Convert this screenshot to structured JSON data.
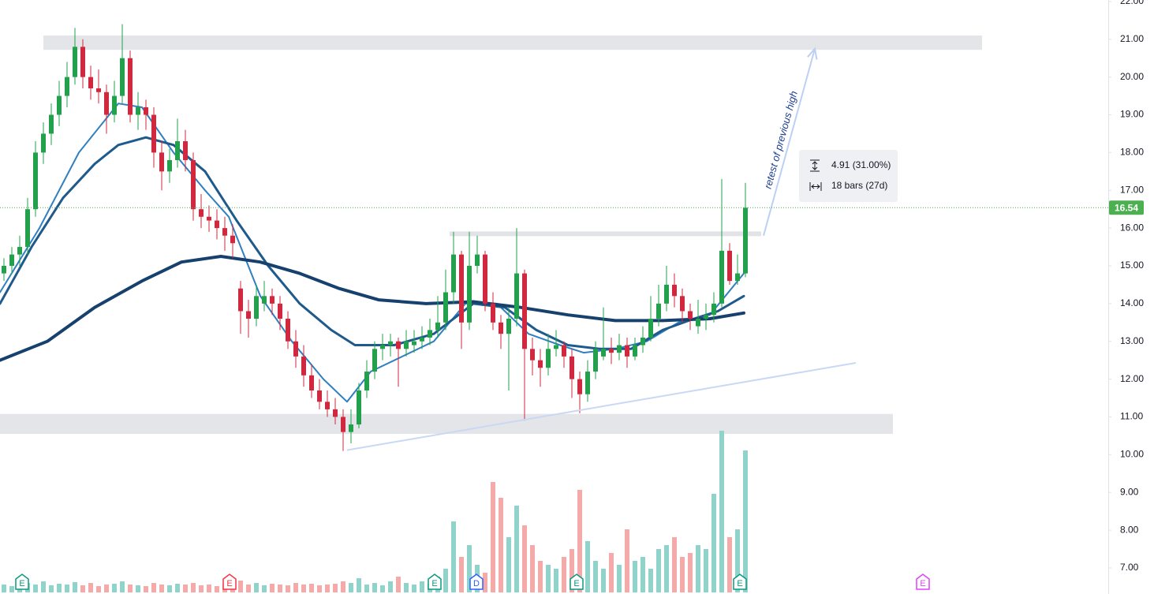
{
  "chart_data": {
    "type": "candlestick",
    "ylim": [
      6.31,
      22.04
    ],
    "yticks": [
      {
        "value": 22,
        "label": "22.00"
      },
      {
        "value": 21,
        "label": "21.00"
      },
      {
        "value": 20,
        "label": "20.00"
      },
      {
        "value": 19,
        "label": "19.00"
      },
      {
        "value": 18,
        "label": "18.00"
      },
      {
        "value": 17,
        "label": "17.00"
      },
      {
        "value": 16,
        "label": "16.00"
      },
      {
        "value": 15,
        "label": "15.00"
      },
      {
        "value": 14,
        "label": "14.00"
      },
      {
        "value": 13,
        "label": "13.00"
      },
      {
        "value": 12,
        "label": "12.00"
      },
      {
        "value": 11,
        "label": "11.00"
      },
      {
        "value": 10,
        "label": "10.00"
      },
      {
        "value": 9,
        "label": "9.00"
      },
      {
        "value": 8,
        "label": "8.00"
      },
      {
        "value": 7,
        "label": "7.00"
      }
    ],
    "up_color": "#22a04b",
    "down_color": "#d0293f",
    "volume_up_color": "#8fd3cb",
    "volume_down_color": "#f5aaaa",
    "candles": [
      [
        14.8,
        15.2,
        14.6,
        15.0
      ],
      [
        15.0,
        15.5,
        14.8,
        15.3
      ],
      [
        15.3,
        15.8,
        15.0,
        15.5
      ],
      [
        15.5,
        16.8,
        15.3,
        16.5
      ],
      [
        16.5,
        18.3,
        16.3,
        18.0
      ],
      [
        18.0,
        18.8,
        17.7,
        18.5
      ],
      [
        18.5,
        19.3,
        18.2,
        19.0
      ],
      [
        19.0,
        19.9,
        18.7,
        19.5
      ],
      [
        19.5,
        20.4,
        19.2,
        20.0
      ],
      [
        20.0,
        21.3,
        19.8,
        20.8
      ],
      [
        20.8,
        21.0,
        19.7,
        20.0
      ],
      [
        20.0,
        20.3,
        19.4,
        19.7
      ],
      [
        19.7,
        20.2,
        19.3,
        19.6
      ],
      [
        19.6,
        19.8,
        18.5,
        19.0
      ],
      [
        19.0,
        19.9,
        18.8,
        19.5
      ],
      [
        19.5,
        21.4,
        19.3,
        20.5
      ],
      [
        20.5,
        20.7,
        18.8,
        19.0
      ],
      [
        19.0,
        19.6,
        18.6,
        19.2
      ],
      [
        19.2,
        19.4,
        18.6,
        19.0
      ],
      [
        19.0,
        19.2,
        17.6,
        18.0
      ],
      [
        18.0,
        18.3,
        17.0,
        17.5
      ],
      [
        17.5,
        18.1,
        17.2,
        17.8
      ],
      [
        17.8,
        18.9,
        17.6,
        18.3
      ],
      [
        18.3,
        18.6,
        17.5,
        17.8
      ],
      [
        17.8,
        18.0,
        16.2,
        16.5
      ],
      [
        16.5,
        16.9,
        16.0,
        16.3
      ],
      [
        16.3,
        16.6,
        15.9,
        16.2
      ],
      [
        16.2,
        16.5,
        15.7,
        16.0
      ],
      [
        16.0,
        16.3,
        15.4,
        15.8
      ],
      [
        15.8,
        16.1,
        15.2,
        15.6
      ],
      [
        14.4,
        14.6,
        13.2,
        13.8
      ],
      [
        13.8,
        14.1,
        13.1,
        13.6
      ],
      [
        13.6,
        14.5,
        13.4,
        14.2
      ],
      [
        14.0,
        14.6,
        13.8,
        14.2
      ],
      [
        14.2,
        14.4,
        13.7,
        14.0
      ],
      [
        14.0,
        14.2,
        13.3,
        13.6
      ],
      [
        13.6,
        13.8,
        12.8,
        13.0
      ],
      [
        13.0,
        13.3,
        12.3,
        12.6
      ],
      [
        12.6,
        12.9,
        11.8,
        12.1
      ],
      [
        12.1,
        12.4,
        11.5,
        11.7
      ],
      [
        11.7,
        12.0,
        11.2,
        11.4
      ],
      [
        11.4,
        11.7,
        11.0,
        11.2
      ],
      [
        11.2,
        11.5,
        10.8,
        11.0
      ],
      [
        11.0,
        11.2,
        10.1,
        10.6
      ],
      [
        10.6,
        11.2,
        10.3,
        10.8
      ],
      [
        10.8,
        11.9,
        10.7,
        11.7
      ],
      [
        11.7,
        12.5,
        11.5,
        12.2
      ],
      [
        12.2,
        13.0,
        12.0,
        12.8
      ],
      [
        12.8,
        13.2,
        12.5,
        12.9
      ],
      [
        12.9,
        13.2,
        12.6,
        13.0
      ],
      [
        13.0,
        13.1,
        11.8,
        12.8
      ],
      [
        12.8,
        13.3,
        12.6,
        13.0
      ],
      [
        12.9,
        13.3,
        12.7,
        13.0
      ],
      [
        13.0,
        13.4,
        12.8,
        13.1
      ],
      [
        13.1,
        13.6,
        12.9,
        13.3
      ],
      [
        13.3,
        14.2,
        13.1,
        13.5
      ],
      [
        13.5,
        14.9,
        13.3,
        14.3
      ],
      [
        14.3,
        15.9,
        14.0,
        15.3
      ],
      [
        15.3,
        15.4,
        12.8,
        13.5
      ],
      [
        13.5,
        15.9,
        13.3,
        15.0
      ],
      [
        15.0,
        15.8,
        14.8,
        15.3
      ],
      [
        15.3,
        15.4,
        13.8,
        14.0
      ],
      [
        14.0,
        14.3,
        13.3,
        13.5
      ],
      [
        13.5,
        13.7,
        12.8,
        13.2
      ],
      [
        13.2,
        13.9,
        11.7,
        13.6
      ],
      [
        13.6,
        16.0,
        13.4,
        14.8
      ],
      [
        14.8,
        14.9,
        10.9,
        12.8
      ],
      [
        12.8,
        13.1,
        12.1,
        12.5
      ],
      [
        12.5,
        12.8,
        11.8,
        12.3
      ],
      [
        12.3,
        13.2,
        12.1,
        12.8
      ],
      [
        12.8,
        13.3,
        12.6,
        12.9
      ],
      [
        12.9,
        13.0,
        12.3,
        12.6
      ],
      [
        12.6,
        12.8,
        11.5,
        12.0
      ],
      [
        12.0,
        12.2,
        11.1,
        11.6
      ],
      [
        11.6,
        12.5,
        11.4,
        12.2
      ],
      [
        12.2,
        13.0,
        12.0,
        12.8
      ],
      [
        12.6,
        13.9,
        12.5,
        12.8
      ],
      [
        12.8,
        13.1,
        12.4,
        12.7
      ],
      [
        12.7,
        13.2,
        12.5,
        12.9
      ],
      [
        12.9,
        13.1,
        12.3,
        12.6
      ],
      [
        12.6,
        13.1,
        12.5,
        12.9
      ],
      [
        12.9,
        13.4,
        12.7,
        13.1
      ],
      [
        13.1,
        14.2,
        13.0,
        13.6
      ],
      [
        13.6,
        14.5,
        13.4,
        14.0
      ],
      [
        14.0,
        15.0,
        13.8,
        14.5
      ],
      [
        14.5,
        14.8,
        13.9,
        14.2
      ],
      [
        14.2,
        14.4,
        13.5,
        13.8
      ],
      [
        13.8,
        14.0,
        13.3,
        13.6
      ],
      [
        13.4,
        14.1,
        13.2,
        13.6
      ],
      [
        13.6,
        14.0,
        13.3,
        13.7
      ],
      [
        13.7,
        14.3,
        13.5,
        14.0
      ],
      [
        14.0,
        17.3,
        13.9,
        15.4
      ],
      [
        15.4,
        15.6,
        14.5,
        14.6
      ],
      [
        14.6,
        15.3,
        14.5,
        14.8
      ],
      [
        14.8,
        17.2,
        14.7,
        16.54
      ]
    ],
    "volume": [
      10,
      8,
      9,
      12,
      10,
      14,
      9,
      11,
      10,
      13,
      9,
      12,
      8,
      10,
      11,
      14,
      10,
      9,
      8,
      12,
      10,
      9,
      11,
      10,
      12,
      9,
      10,
      8,
      11,
      13,
      15,
      10,
      12,
      9,
      11,
      10,
      9,
      12,
      10,
      11,
      9,
      10,
      11,
      14,
      12,
      18,
      10,
      12,
      9,
      14,
      20,
      12,
      10,
      14,
      11,
      20,
      30,
      90,
      45,
      60,
      35,
      25,
      140,
      120,
      70,
      110,
      85,
      60,
      40,
      35,
      30,
      45,
      55,
      130,
      65,
      40,
      30,
      50,
      35,
      80,
      40,
      45,
      30,
      55,
      60,
      70,
      45,
      50,
      60,
      55,
      125,
      205,
      70,
      80,
      180
    ],
    "lines": [
      {
        "color": "#2f7fc1",
        "width": 2,
        "x": [
          -0.5,
          4.5,
          9.5,
          14.5,
          17.5,
          21.5,
          25.5,
          28.5,
          32.5,
          36.5,
          40.5,
          43.5,
          46.5,
          50.5,
          54.5,
          58.5,
          62.5,
          66.5,
          70.5,
          73.5,
          77.5,
          81.5,
          85.5,
          89.5,
          93.8
        ],
        "values": [
          14.3,
          16.0,
          18.0,
          19.3,
          19.2,
          18.0,
          17.0,
          16.3,
          14.2,
          13.0,
          12.0,
          11.4,
          12.2,
          12.6,
          13.0,
          14.0,
          14.0,
          13.2,
          12.9,
          12.7,
          12.8,
          13.0,
          13.5,
          13.7,
          14.8
        ]
      },
      {
        "color": "#1f5a8c",
        "width": 3,
        "x": [
          -0.5,
          3.5,
          7.5,
          11.5,
          14.5,
          18,
          21.5,
          25.5,
          29.5,
          33.5,
          37.5,
          41.5,
          44.5,
          49.5,
          54.5,
          59.5,
          63.5,
          67.5,
          71.5,
          75.5,
          79.5,
          83.5,
          87.5,
          90.5,
          93.8
        ],
        "values": [
          14.0,
          15.5,
          16.8,
          17.7,
          18.2,
          18.4,
          18.2,
          17.5,
          16.2,
          15.0,
          14.0,
          13.3,
          12.9,
          12.9,
          13.2,
          14.0,
          13.9,
          13.3,
          12.9,
          12.8,
          12.8,
          13.3,
          13.6,
          13.8,
          14.2
        ]
      },
      {
        "color": "#16416e",
        "width": 4,
        "x": [
          -0.5,
          5.5,
          11.5,
          17.5,
          22.5,
          27.5,
          32.5,
          37.5,
          42.5,
          47.5,
          53.5,
          59.5,
          65.5,
          71.5,
          77.5,
          83.5,
          89.5,
          93.8
        ],
        "values": [
          12.5,
          13.0,
          13.9,
          14.6,
          15.1,
          15.25,
          15.1,
          14.8,
          14.4,
          14.1,
          14.0,
          14.05,
          13.9,
          13.7,
          13.55,
          13.55,
          13.6,
          13.75
        ]
      }
    ],
    "zones": [
      {
        "x": [
          5,
          124
        ],
        "y": [
          20.72,
          21.1
        ]
      },
      {
        "x": [
          -0.5,
          112.7
        ],
        "y": [
          10.55,
          11.08
        ]
      }
    ],
    "levels": [
      {
        "x": [
          56.5,
          96
        ],
        "y": 15.85
      }
    ],
    "trendline": {
      "x": [
        43.5,
        108
      ],
      "y": [
        10.12,
        12.43
      ]
    },
    "last_price": 16.54,
    "last_price_color": "#4caf50",
    "annotation": {
      "text": "retest of previous high",
      "arrow": {
        "x": [
          96.3,
          102.8
        ],
        "y": [
          15.8,
          20.75
        ]
      }
    },
    "measure": {
      "price_change": "4.91 (31.00%)",
      "range": "18 bars (27d)"
    },
    "events": [
      {
        "label": "E",
        "x": 2.3,
        "color": "#089981"
      },
      {
        "label": "E",
        "x": 28.6,
        "color": "#f23645"
      },
      {
        "label": "E",
        "x": 54.6,
        "color": "#089981"
      },
      {
        "label": "D",
        "x": 59.9,
        "color": "#2962ff"
      },
      {
        "label": "E",
        "x": 72.6,
        "color": "#089981"
      },
      {
        "label": "E",
        "x": 93.3,
        "color": "#089981"
      },
      {
        "label": "E",
        "x": 116.5,
        "color": "#e040fb"
      }
    ]
  }
}
